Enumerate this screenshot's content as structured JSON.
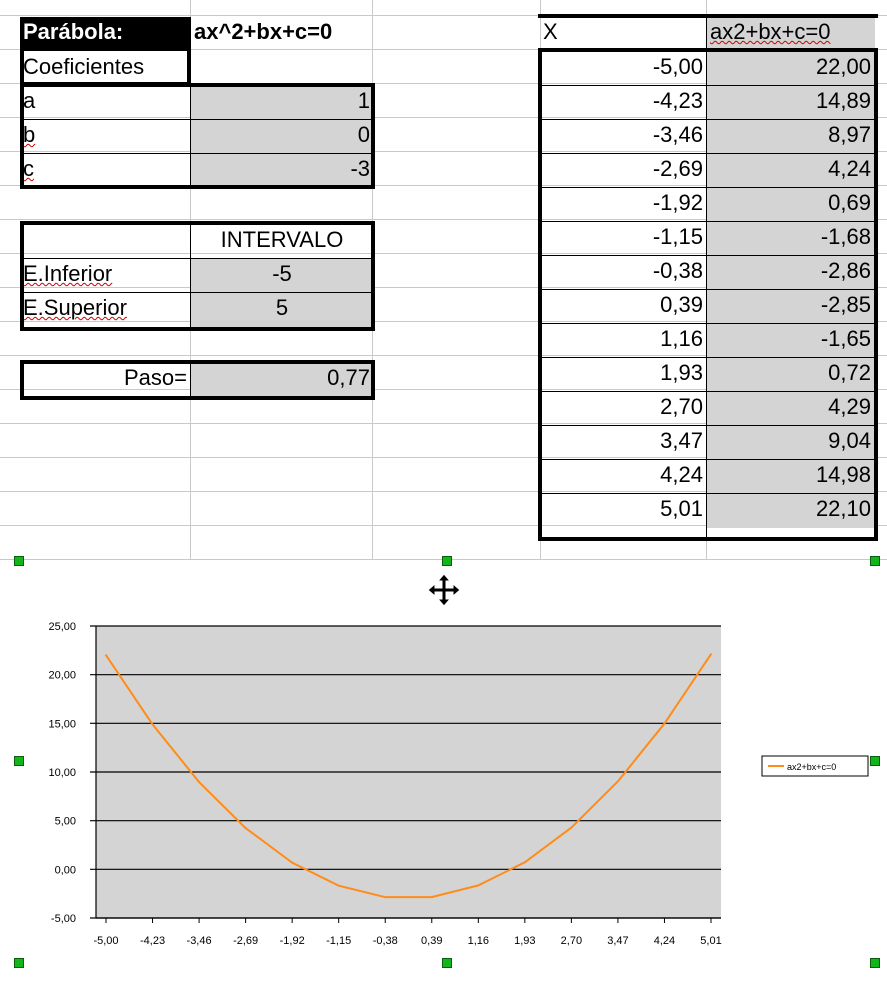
{
  "sheet": {
    "title_label": "Parábola:",
    "formula": "ax^2+bx+c=0",
    "coef_header": "Coeficientes",
    "coefficients": [
      {
        "name": "a",
        "value": "1"
      },
      {
        "name": "b",
        "value": "0"
      },
      {
        "name": "c",
        "value": "-3"
      }
    ],
    "interval": {
      "header": "INTERVALO",
      "lower_label": "E.Inferior",
      "lower_value": "-5",
      "upper_label": "E.Superior",
      "upper_value": "5"
    },
    "step": {
      "label": "Paso=",
      "value": "0,77"
    },
    "table": {
      "col_x": "X",
      "col_y": "ax2+bx+c=0",
      "rows": [
        {
          "x": "-5,00",
          "y": "22,00"
        },
        {
          "x": "-4,23",
          "y": "14,89"
        },
        {
          "x": "-3,46",
          "y": "8,97"
        },
        {
          "x": "-2,69",
          "y": "4,24"
        },
        {
          "x": "-1,92",
          "y": "0,69"
        },
        {
          "x": "-1,15",
          "y": "-1,68"
        },
        {
          "x": "-0,38",
          "y": "-2,86"
        },
        {
          "x": "0,39",
          "y": "-2,85"
        },
        {
          "x": "1,16",
          "y": "-1,65"
        },
        {
          "x": "1,93",
          "y": "0,72"
        },
        {
          "x": "2,70",
          "y": "4,29"
        },
        {
          "x": "3,47",
          "y": "9,04"
        },
        {
          "x": "4,24",
          "y": "14,98"
        },
        {
          "x": "5,01",
          "y": "22,10"
        }
      ]
    }
  },
  "chart_data": {
    "type": "line",
    "categories": [
      "-5,00",
      "-4,23",
      "-3,46",
      "-2,69",
      "-1,92",
      "-1,15",
      "-0,38",
      "0,39",
      "1,16",
      "1,93",
      "2,70",
      "3,47",
      "4,24",
      "5,01"
    ],
    "series": [
      {
        "name": "ax2+bx+c=0",
        "values": [
          22.0,
          14.89,
          8.97,
          4.24,
          0.69,
          -1.68,
          -2.86,
          -2.85,
          -1.65,
          0.72,
          4.29,
          9.04,
          14.98,
          22.1
        ]
      }
    ],
    "yticks": [
      "25,00",
      "20,00",
      "15,00",
      "10,00",
      "5,00",
      "0,00",
      "-5,00"
    ],
    "ylim": [
      -5,
      25
    ],
    "grid": true,
    "legend": "right",
    "colors": {
      "line": "#ff8c1a",
      "plot_bg": "#d4d4d4",
      "gridline": "#000000"
    }
  }
}
